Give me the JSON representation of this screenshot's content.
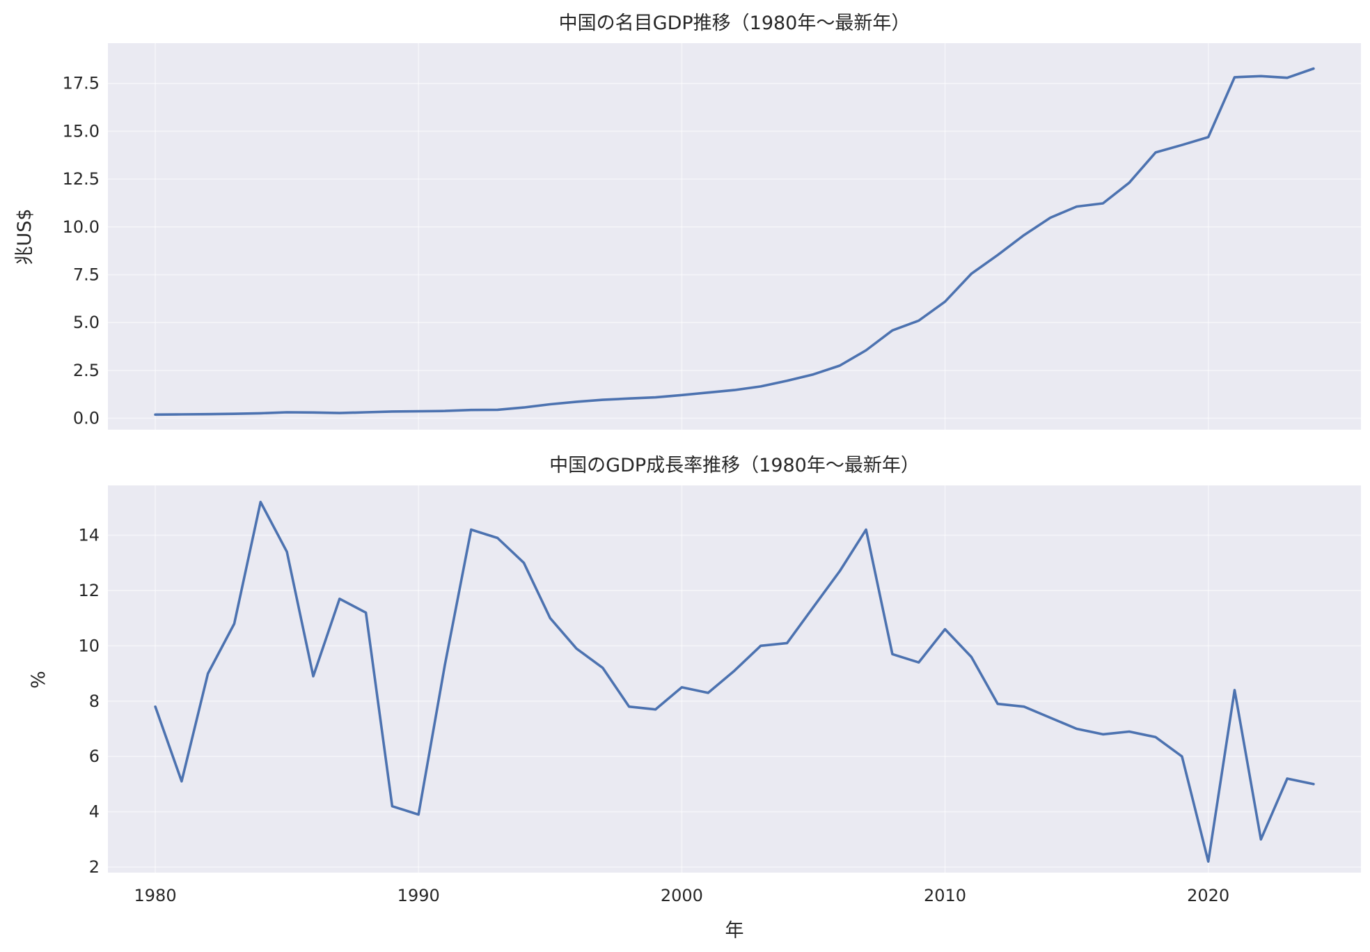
{
  "colors": {
    "background": "#eaeaf2",
    "grid": "#ffffff",
    "series": "#4c72b0",
    "text": "#262626"
  },
  "chart_data": [
    {
      "type": "line",
      "title": "中国の名目GDP推移（1980年〜最新年）",
      "xlabel": "",
      "ylabel": "兆US$",
      "xlim": [
        1978.2,
        2025.8
      ],
      "ylim": [
        -0.6,
        19.6
      ],
      "grid": true,
      "xticks": [
        1980,
        1990,
        2000,
        2010,
        2020
      ],
      "yticks": [
        "0.0",
        "2.5",
        "5.0",
        "7.5",
        "10.0",
        "12.5",
        "15.0",
        "17.5"
      ],
      "x": [
        1980,
        1981,
        1982,
        1983,
        1984,
        1985,
        1986,
        1987,
        1988,
        1989,
        1990,
        1991,
        1992,
        1993,
        1994,
        1995,
        1996,
        1997,
        1998,
        1999,
        2000,
        2001,
        2002,
        2003,
        2004,
        2005,
        2006,
        2007,
        2008,
        2009,
        2010,
        2011,
        2012,
        2013,
        2014,
        2015,
        2016,
        2017,
        2018,
        2019,
        2020,
        2021,
        2022,
        2023,
        2024
      ],
      "series": [
        {
          "values": [
            0.19,
            0.2,
            0.21,
            0.23,
            0.26,
            0.31,
            0.3,
            0.27,
            0.31,
            0.35,
            0.36,
            0.38,
            0.43,
            0.44,
            0.56,
            0.73,
            0.86,
            0.96,
            1.03,
            1.09,
            1.21,
            1.34,
            1.47,
            1.66,
            1.96,
            2.29,
            2.75,
            3.55,
            4.59,
            5.1,
            6.09,
            7.55,
            8.53,
            9.57,
            10.48,
            11.06,
            11.23,
            12.31,
            13.89,
            14.28,
            14.69,
            17.82,
            17.88,
            17.79,
            18.27
          ]
        }
      ]
    },
    {
      "type": "line",
      "title": "中国のGDP成長率推移（1980年〜最新年）",
      "xlabel": "年",
      "ylabel": "%",
      "xlim": [
        1978.2,
        2025.8
      ],
      "ylim": [
        1.8,
        15.8
      ],
      "grid": true,
      "xticks": [
        1980,
        1990,
        2000,
        2010,
        2020
      ],
      "yticks": [
        "2",
        "4",
        "6",
        "8",
        "10",
        "12",
        "14"
      ],
      "x": [
        1980,
        1981,
        1982,
        1983,
        1984,
        1985,
        1986,
        1987,
        1988,
        1989,
        1990,
        1991,
        1992,
        1993,
        1994,
        1995,
        1996,
        1997,
        1998,
        1999,
        2000,
        2001,
        2002,
        2003,
        2004,
        2005,
        2006,
        2007,
        2008,
        2009,
        2010,
        2011,
        2012,
        2013,
        2014,
        2015,
        2016,
        2017,
        2018,
        2019,
        2020,
        2021,
        2022,
        2023,
        2024
      ],
      "series": [
        {
          "values": [
            7.8,
            5.1,
            9.0,
            10.8,
            15.2,
            13.4,
            8.9,
            11.7,
            11.2,
            4.2,
            3.9,
            9.3,
            14.2,
            13.9,
            13.0,
            11.0,
            9.9,
            9.2,
            7.8,
            7.7,
            8.5,
            8.3,
            9.1,
            10.0,
            10.1,
            11.4,
            12.7,
            14.2,
            9.7,
            9.4,
            10.6,
            9.6,
            7.9,
            7.8,
            7.4,
            7.0,
            6.8,
            6.9,
            6.7,
            6.0,
            2.2,
            8.4,
            3.0,
            5.2,
            5.0
          ]
        }
      ]
    }
  ]
}
